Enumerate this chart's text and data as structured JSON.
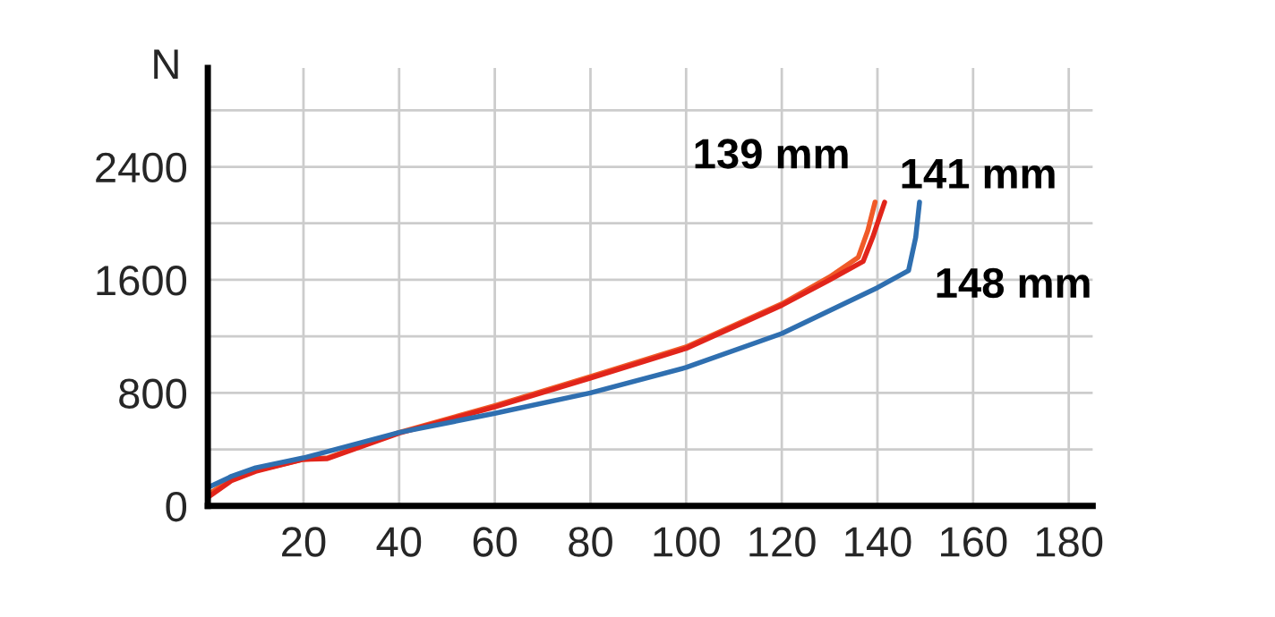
{
  "chart_data": {
    "type": "line",
    "ylabel": "N",
    "xlim": [
      0,
      185
    ],
    "xticks": [
      {
        "value": 0,
        "label": null
      },
      20,
      40,
      60,
      80,
      100,
      120,
      140,
      160,
      180
    ],
    "ylim": [
      0,
      3100
    ],
    "yticks": [
      0,
      {
        "value": 400,
        "label": null
      },
      800,
      {
        "value": 1200,
        "label": null
      },
      1600,
      {
        "value": 2000,
        "label": null
      },
      2400,
      {
        "value": 2800,
        "label": null
      }
    ],
    "grid": true,
    "legend": false,
    "marker": "none",
    "line_style": "solid",
    "series": [
      {
        "name": "139 mm",
        "color": "#f05a28",
        "x": [
          0,
          5,
          10,
          20,
          25,
          40,
          60,
          80,
          100,
          120,
          130,
          136,
          138,
          139.5
        ],
        "values": [
          80,
          190,
          250,
          330,
          340,
          520,
          710,
          915,
          1125,
          1430,
          1620,
          1760,
          1950,
          2150
        ]
      },
      {
        "name": "141 mm",
        "color": "#e1251b",
        "x": [
          0,
          5,
          10,
          20,
          25,
          40,
          60,
          80,
          100,
          120,
          130,
          137,
          139,
          141.5
        ],
        "values": [
          60,
          180,
          245,
          330,
          335,
          515,
          700,
          905,
          1115,
          1420,
          1600,
          1730,
          1900,
          2150
        ]
      },
      {
        "name": "148 mm",
        "color": "#2f6fb0",
        "x": [
          0,
          5,
          10,
          20,
          40,
          60,
          80,
          100,
          120,
          140,
          146.5,
          148,
          148.8
        ],
        "values": [
          130,
          210,
          270,
          340,
          520,
          655,
          800,
          980,
          1220,
          1545,
          1665,
          1900,
          2150
        ]
      }
    ]
  }
}
